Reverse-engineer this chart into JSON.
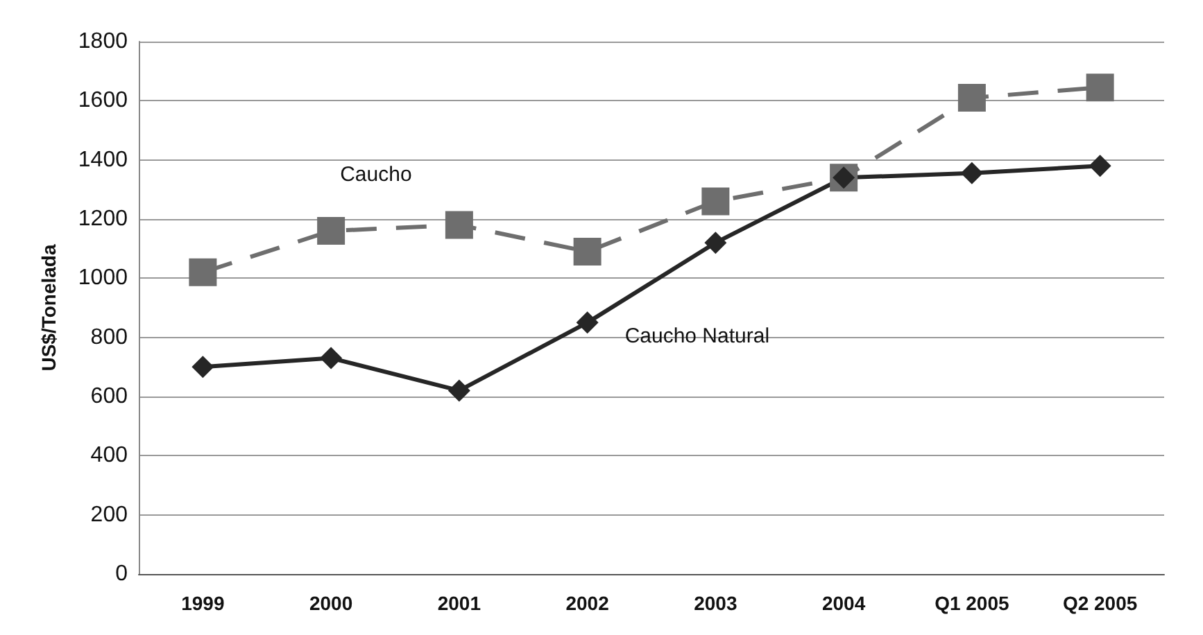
{
  "chart_data": {
    "type": "line",
    "ylabel": "US$/Tonelada",
    "categories": [
      "1999",
      "2000",
      "2001",
      "2002",
      "2003",
      "2004",
      "Q1 2005",
      "Q2 2005"
    ],
    "series": [
      {
        "name": "Caucho",
        "color": "#6e6e6e",
        "marker": "square",
        "line_style": "dashed",
        "values": [
          1020,
          1160,
          1180,
          1090,
          1260,
          1340,
          1610,
          1645
        ]
      },
      {
        "name": "Caucho Natural",
        "color": "#262626",
        "marker": "diamond",
        "line_style": "solid",
        "values": [
          700,
          730,
          620,
          850,
          1120,
          1340,
          1355,
          1380
        ]
      }
    ],
    "ylim": [
      0,
      1800
    ],
    "yticks": [
      0,
      200,
      400,
      600,
      800,
      1000,
      1200,
      1400,
      1600,
      1800
    ],
    "grid": "y",
    "legend": false
  }
}
